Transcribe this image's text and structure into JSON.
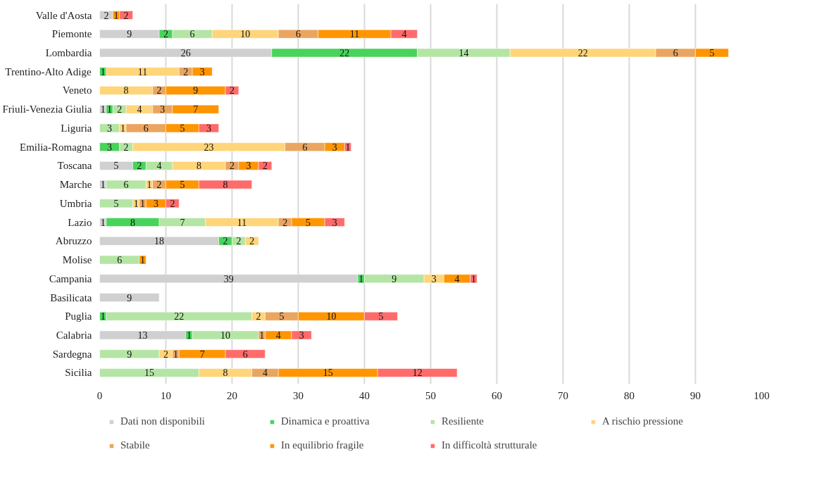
{
  "chart_data": {
    "type": "bar",
    "orientation": "horizontal",
    "stacked": true,
    "data_labels": true,
    "grid": "x",
    "legend": "bottom",
    "categories": [
      "Valle d'Aosta",
      "Piemonte",
      "Lombardia",
      "Trentino-Alto Adige",
      "Veneto",
      "Friuli-Venezia Giulia",
      "Liguria",
      "Emilia-Romagna",
      "Toscana",
      "Marche",
      "Umbria",
      "Lazio",
      "Abruzzo",
      "Molise",
      "Campania",
      "Basilicata",
      "Puglia",
      "Calabria",
      "Sardegna",
      "Sicilia"
    ],
    "xlim": [
      0,
      100
    ],
    "xticks": [
      0,
      10,
      20,
      30,
      40,
      50,
      60,
      70,
      80,
      90,
      100
    ],
    "series": [
      {
        "name": "Dati non disponibili",
        "color": "#d0d0d0",
        "values": [
          2,
          9,
          26,
          null,
          null,
          1,
          null,
          null,
          5,
          1,
          null,
          1,
          18,
          null,
          39,
          9,
          null,
          13,
          null,
          null
        ]
      },
      {
        "name": "Dinamica e proattiva",
        "color": "#48d35b",
        "values": [
          null,
          2,
          22,
          1,
          null,
          1,
          null,
          3,
          2,
          null,
          null,
          8,
          2,
          null,
          1,
          null,
          1,
          1,
          null,
          null
        ]
      },
      {
        "name": "Resiliente",
        "color": "#b4e5a4",
        "values": [
          null,
          6,
          14,
          null,
          null,
          2,
          3,
          2,
          4,
          6,
          5,
          7,
          2,
          6,
          9,
          null,
          22,
          10,
          9,
          15
        ]
      },
      {
        "name": "A rischio pressione",
        "color": "#ffd57a",
        "values": [
          null,
          10,
          22,
          11,
          8,
          4,
          1,
          23,
          8,
          1,
          1,
          11,
          2,
          null,
          3,
          null,
          2,
          null,
          2,
          8
        ]
      },
      {
        "name": "Stabile",
        "color": "#eaa560",
        "values": [
          null,
          6,
          6,
          2,
          2,
          3,
          6,
          6,
          2,
          2,
          1,
          2,
          null,
          null,
          null,
          null,
          5,
          1,
          1,
          4
        ]
      },
      {
        "name": "In equilibrio fragile",
        "color": "#ff9500",
        "values": [
          1,
          11,
          5,
          3,
          9,
          7,
          5,
          3,
          3,
          5,
          3,
          5,
          null,
          1,
          4,
          null,
          10,
          4,
          7,
          15
        ]
      },
      {
        "name": "In difficoltà strutturale",
        "color": "#ff6b6b",
        "values": [
          2,
          4,
          null,
          null,
          2,
          null,
          3,
          1,
          2,
          8,
          2,
          3,
          null,
          null,
          1,
          null,
          5,
          3,
          6,
          12
        ]
      }
    ]
  }
}
